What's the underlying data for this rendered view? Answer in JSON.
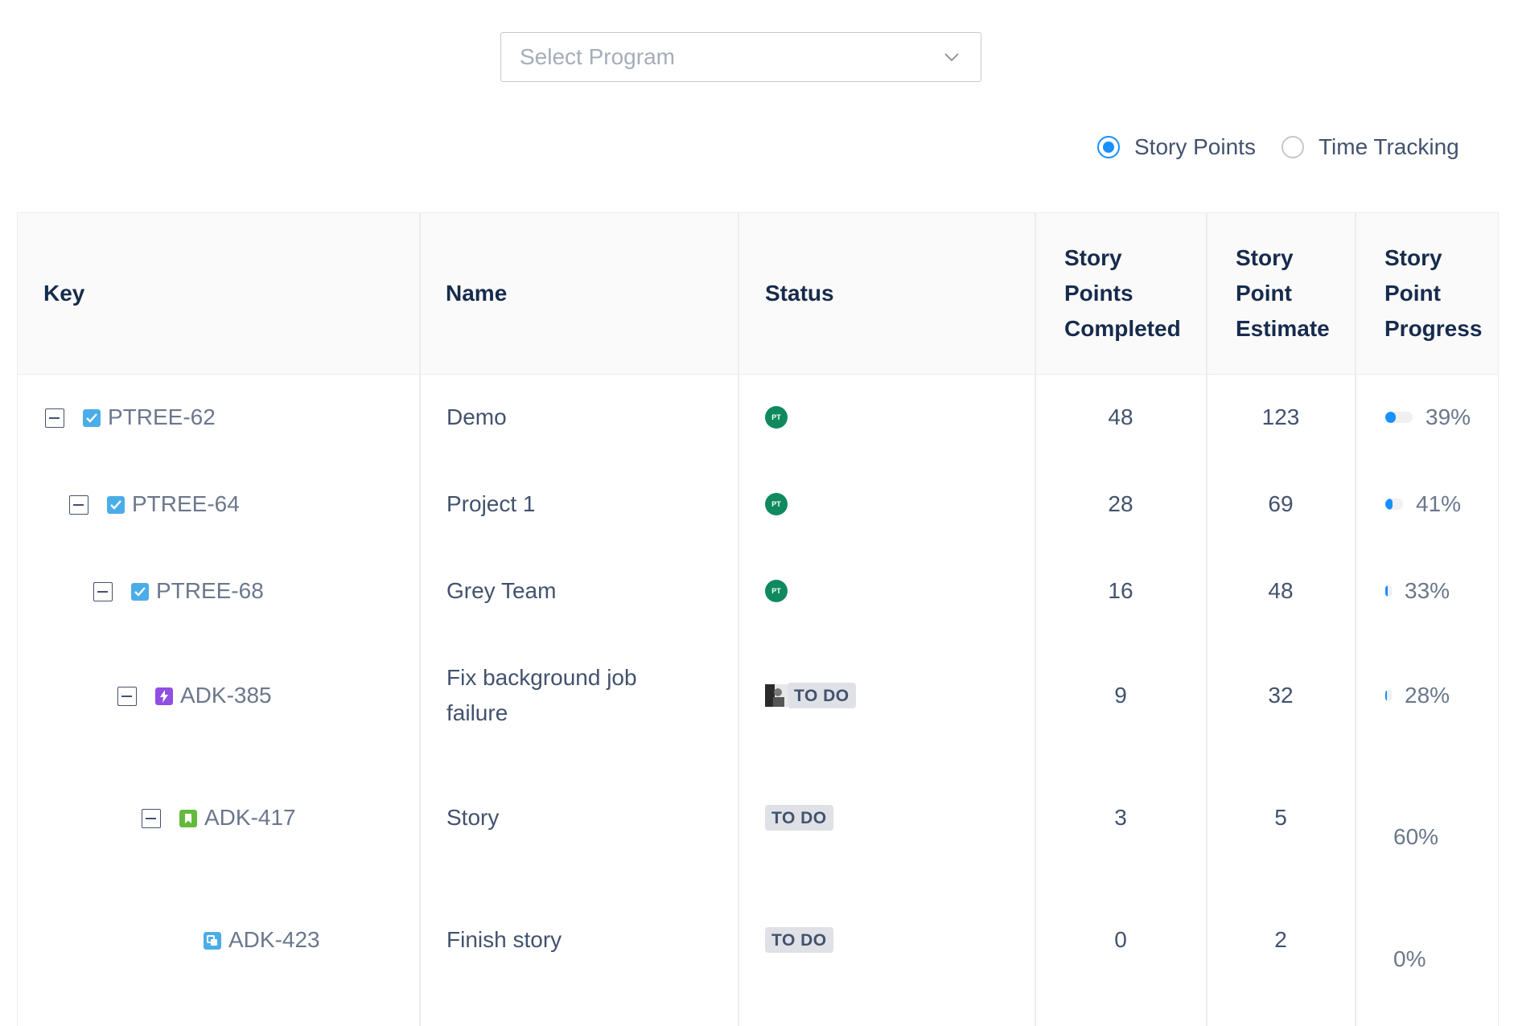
{
  "filter": {
    "program_placeholder": "Select Program"
  },
  "mode": {
    "options": [
      {
        "label": "Story Points",
        "selected": true
      },
      {
        "label": "Time Tracking",
        "selected": false
      }
    ]
  },
  "table": {
    "headers": {
      "key": "Key",
      "name": "Name",
      "status": "Status",
      "completed": [
        "Story",
        "Points",
        "Completed"
      ],
      "estimate": [
        "Story",
        "Point",
        "Estimate"
      ],
      "progress": [
        "Story",
        "Point",
        "Progress"
      ]
    },
    "rows": [
      {
        "key": "PTREE-62",
        "type": "checkbox-icon",
        "name": "Demo",
        "status": "PT",
        "completed": "48",
        "estimate": "123",
        "progress": "39%",
        "progress_value": 0.39
      },
      {
        "key": "PTREE-64",
        "type": "checkbox-icon",
        "name": "Project 1",
        "status": "PT",
        "completed": "28",
        "estimate": "69",
        "progress": "41%",
        "progress_value": 0.41
      },
      {
        "key": "PTREE-68",
        "type": "checkbox-icon",
        "name": "Grey Team",
        "status": "PT",
        "completed": "16",
        "estimate": "48",
        "progress": "33%",
        "progress_value": 0.33
      },
      {
        "key": "ADK-385",
        "type": "epic-icon",
        "name_lines": [
          "Fix background job",
          "failure"
        ],
        "status": "TO DO",
        "completed": "9",
        "estimate": "32",
        "progress": "28%",
        "progress_value": 0.28
      },
      {
        "key": "ADK-417",
        "type": "story-icon",
        "name": "Story",
        "status": "TO DO",
        "completed": "3",
        "estimate": "5",
        "progress": "60%",
        "progress_value": 0.6
      },
      {
        "key": "ADK-423",
        "type": "subtask-icon",
        "name": "Finish story",
        "status": "TO DO",
        "completed": "0",
        "estimate": "2",
        "progress": "0%",
        "progress_value": 0.0
      }
    ]
  },
  "colors": {
    "accent": "#1890ff",
    "status_green": "#0f8a5f",
    "lozenge_bg": "#dfe1e6",
    "epic": "#904ee2",
    "story": "#63ba3c",
    "task": "#4bade8"
  }
}
